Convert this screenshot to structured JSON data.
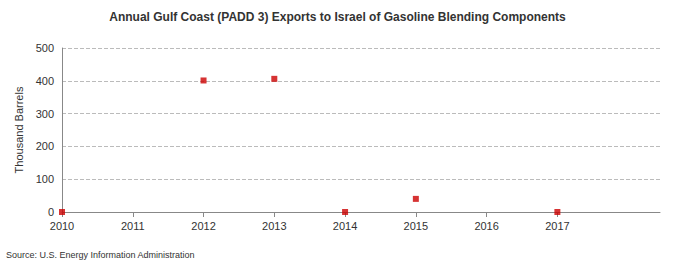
{
  "chart_data": {
    "type": "scatter",
    "title": "Annual Gulf Coast (PADD 3) Exports to Israel of Gasoline Blending Components",
    "y_label": "Thousand Barrels",
    "annotations": [
      "Source: U.S. Energy Information Administration"
    ],
    "x": [
      2010,
      2011,
      2012,
      2013,
      2014,
      2015,
      2016,
      2017
    ],
    "values": [
      0,
      null,
      401,
      406,
      0,
      40,
      null,
      0
    ],
    "color": "#cc0000",
    "marker": "square",
    "xlim": [
      2010,
      2018.45
    ],
    "xticks": [
      2010,
      2011,
      2012,
      2013,
      2014,
      2015,
      2016,
      2017
    ],
    "ylim": [
      0,
      500
    ],
    "yticks": [
      0,
      100,
      200,
      300,
      400,
      500
    ],
    "grid": true
  }
}
